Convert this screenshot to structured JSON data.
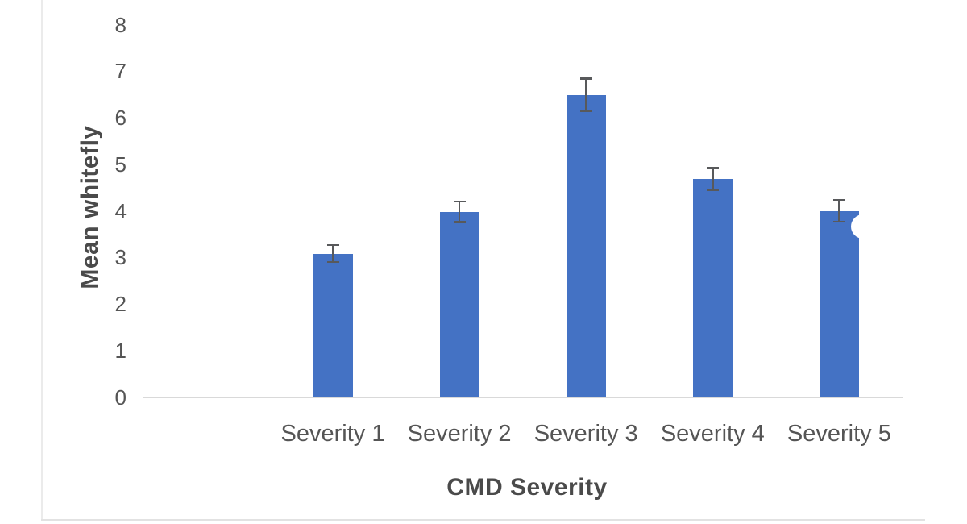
{
  "chart_data": {
    "type": "bar",
    "title": "",
    "xlabel": "CMD Severity",
    "ylabel": "Mean whitefly",
    "categories": [
      "Severity 1",
      "Severity 2",
      "Severity 3",
      "Severity 4",
      "Severity 5"
    ],
    "values": [
      3.08,
      3.98,
      6.49,
      4.68,
      4.0
    ],
    "error_bars": [
      0.18,
      0.22,
      0.35,
      0.24,
      0.23
    ],
    "ylim": [
      0,
      8
    ],
    "yticks": [
      0,
      1,
      2,
      3,
      4,
      5,
      6,
      7,
      8
    ],
    "grid": false,
    "legend": false,
    "colors": {
      "bar": "#4472C4",
      "error_bar": "#58595b",
      "axis_line": "#d9d9d9",
      "tick_text": "#555555",
      "axis_title_text": "#4a4a4a",
      "page_border": "#ebebeb"
    }
  }
}
